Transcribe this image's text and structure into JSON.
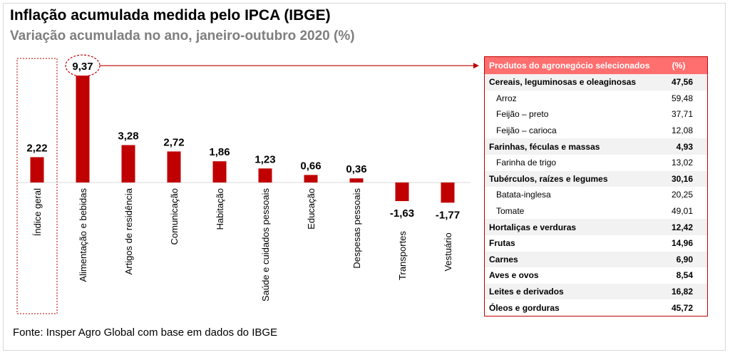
{
  "title": "Inflação acumulada medida pelo IPCA (IBGE)",
  "subtitle": "Variação acumulada no ano, janeiro-outubro 2020 (%)",
  "source": "Fonte: Insper Agro Global com base em dados do IBGE",
  "colors": {
    "bar": "#c00000",
    "table_header": "#ff6f6f",
    "shade": "#f2f2f2",
    "title_gray": "#7f7f7f"
  },
  "chart_data": {
    "type": "bar",
    "title": "Inflação acumulada medida pelo IPCA (IBGE)",
    "categories": [
      "Índice geral",
      "Alimentação e bebidas",
      "Artigos de residência",
      "Comunicação",
      "Habitação",
      "Saúde e cuidados pessoais",
      "Educação",
      "Despesas pessoais",
      "Transportes",
      "Vestuário"
    ],
    "values": [
      2.22,
      9.37,
      3.28,
      2.72,
      1.86,
      1.23,
      0.66,
      0.36,
      -1.63,
      -1.77
    ],
    "labels": [
      "2,22",
      "9,37",
      "3,28",
      "2,72",
      "1,86",
      "1,23",
      "0,66",
      "0,36",
      "-1,63",
      "-1,77"
    ],
    "highlight": "Alimentação e bebidas",
    "ylim": [
      -2,
      10
    ],
    "xlabel": "",
    "ylabel": ""
  },
  "table": {
    "header": {
      "label": "Produtos do agronegócio selecionados",
      "value": "(%)"
    },
    "rows": [
      {
        "label": "Cereais, leguminosas e oleaginosas",
        "value": "47,56",
        "kind": "cat"
      },
      {
        "label": "Arroz",
        "value": "59,48",
        "kind": "sub"
      },
      {
        "label": "Feijão – preto",
        "value": "37,71",
        "kind": "sub"
      },
      {
        "label": "Feijão – carioca",
        "value": "12,08",
        "kind": "sub"
      },
      {
        "label": "Farinhas, féculas e massas",
        "value": "4,93",
        "kind": "cat"
      },
      {
        "label": "Farinha de trigo",
        "value": "13,02",
        "kind": "sub"
      },
      {
        "label": "Tubérculos, raízes e legumes",
        "value": "30,16",
        "kind": "cat"
      },
      {
        "label": "Batata-inglesa",
        "value": "20,25",
        "kind": "sub"
      },
      {
        "label": "Tomate",
        "value": "49,01",
        "kind": "sub"
      },
      {
        "label": "Hortaliças e verduras",
        "value": "12,42",
        "kind": "cat"
      },
      {
        "label": "Frutas",
        "value": "14,96",
        "kind": "cat"
      },
      {
        "label": "Carnes",
        "value": "6,90",
        "kind": "cat"
      },
      {
        "label": "Aves e ovos",
        "value": "8,54",
        "kind": "cat"
      },
      {
        "label": "Leites e derivados",
        "value": "16,82",
        "kind": "cat"
      },
      {
        "label": "Óleos e gorduras",
        "value": "45,72",
        "kind": "cat"
      }
    ]
  }
}
